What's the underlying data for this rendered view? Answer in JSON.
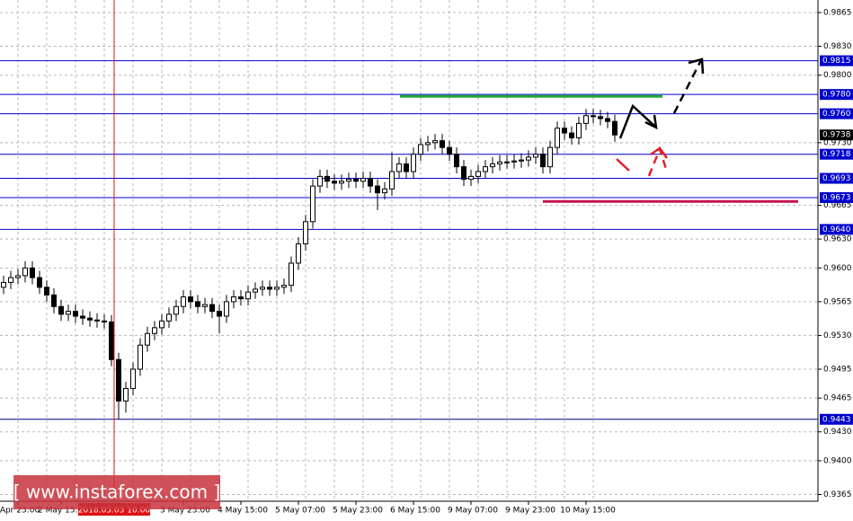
{
  "chart_data": {
    "type": "candlestick",
    "categories": [
      null,
      null,
      "Apr 23:00",
      null,
      null,
      null,
      null,
      null,
      "2 May 15:00",
      null,
      null,
      null,
      null,
      null,
      null,
      null,
      null,
      null,
      null,
      null,
      null,
      null,
      null,
      null,
      null,
      "3 May 23:00",
      null,
      null,
      null,
      null,
      null,
      null,
      null,
      "4 May 15:00",
      null,
      null,
      null,
      null,
      null,
      null,
      null,
      "5 May 07:00",
      null,
      null,
      null,
      null,
      null,
      null,
      null,
      "5 May 23:00",
      null,
      null,
      null,
      null,
      null,
      null,
      null,
      "6 May 15:00",
      null,
      null,
      null,
      null,
      null,
      null,
      null,
      "9 May 07:00",
      null,
      null,
      null,
      null,
      null,
      null,
      null,
      "9 May 23:00",
      null,
      null,
      null,
      null,
      null,
      null,
      null,
      "10 May 15:00",
      null,
      null,
      null,
      null
    ],
    "open": [
      0.958,
      0.9585,
      0.959,
      0.9592,
      0.96,
      0.959,
      0.958,
      0.9572,
      0.956,
      0.9552,
      0.9555,
      0.955,
      0.9548,
      0.9546,
      0.9545,
      0.9544,
      0.9505,
      0.9462,
      0.9475,
      0.9495,
      0.952,
      0.9532,
      0.9538,
      0.9545,
      0.9552,
      0.956,
      0.957,
      0.9565,
      0.956,
      0.9562,
      0.9555,
      0.955,
      0.9565,
      0.957,
      0.9568,
      0.9575,
      0.9578,
      0.958,
      0.9578,
      0.958,
      0.9582,
      0.9605,
      0.9625,
      0.9648,
      0.9685,
      0.9695,
      0.969,
      0.9688,
      0.969,
      0.9692,
      0.969,
      0.9693,
      0.9685,
      0.9678,
      0.9682,
      0.97,
      0.9708,
      0.97,
      0.9718,
      0.9728,
      0.973,
      0.9732,
      0.9725,
      0.9718,
      0.9705,
      0.9692,
      0.9695,
      0.97,
      0.9705,
      0.9708,
      0.971,
      0.971,
      0.9711,
      0.9712,
      0.9715,
      0.9718,
      0.9705,
      0.9725,
      0.9745,
      0.974,
      0.9735,
      0.975,
      0.9758,
      0.9757,
      0.9755,
      0.9752
    ],
    "high": [
      0.9592,
      0.9597,
      0.9599,
      0.9607,
      0.9607,
      0.9597,
      0.9587,
      0.9579,
      0.9567,
      0.9562,
      0.9562,
      0.9557,
      0.9555,
      0.9553,
      0.9552,
      0.9551,
      0.9512,
      0.9482,
      0.9502,
      0.9527,
      0.9539,
      0.9545,
      0.9552,
      0.9559,
      0.9567,
      0.9577,
      0.9577,
      0.9572,
      0.9569,
      0.9569,
      0.9562,
      0.9572,
      0.9577,
      0.9577,
      0.9582,
      0.9585,
      0.9587,
      0.9587,
      0.9587,
      0.9589,
      0.9612,
      0.9632,
      0.9655,
      0.9692,
      0.9702,
      0.9702,
      0.9697,
      0.9697,
      0.9699,
      0.9699,
      0.97,
      0.97,
      0.9692,
      0.9689,
      0.972,
      0.9715,
      0.9715,
      0.9725,
      0.9735,
      0.9737,
      0.9739,
      0.9739,
      0.9732,
      0.9725,
      0.9712,
      0.9702,
      0.9707,
      0.9712,
      0.9715,
      0.9717,
      0.9717,
      0.9718,
      0.9719,
      0.9722,
      0.9725,
      0.9725,
      0.9732,
      0.9752,
      0.9752,
      0.9747,
      0.9757,
      0.9765,
      0.9765,
      0.9764,
      0.9762,
      0.9759
    ],
    "low": [
      0.9573,
      0.9578,
      0.9583,
      0.9585,
      0.9583,
      0.9573,
      0.9565,
      0.9553,
      0.9545,
      0.9545,
      0.9543,
      0.9541,
      0.9539,
      0.9538,
      0.9537,
      0.9498,
      0.9443,
      0.945,
      0.9468,
      0.9488,
      0.9513,
      0.9525,
      0.9531,
      0.9538,
      0.9545,
      0.9553,
      0.9558,
      0.9553,
      0.9553,
      0.9548,
      0.9532,
      0.9543,
      0.9558,
      0.9561,
      0.9561,
      0.9568,
      0.9571,
      0.9571,
      0.9571,
      0.9573,
      0.9575,
      0.9598,
      0.9618,
      0.9641,
      0.9678,
      0.9683,
      0.9681,
      0.9681,
      0.9683,
      0.9683,
      0.9683,
      0.9678,
      0.966,
      0.9671,
      0.9675,
      0.9693,
      0.9693,
      0.9693,
      0.9711,
      0.9721,
      0.9723,
      0.9718,
      0.9711,
      0.9698,
      0.9685,
      0.9685,
      0.9688,
      0.9693,
      0.9698,
      0.9701,
      0.9703,
      0.9703,
      0.9704,
      0.9705,
      0.9708,
      0.9698,
      0.9698,
      0.9718,
      0.9733,
      0.9728,
      0.9728,
      0.9743,
      0.975,
      0.9748,
      0.9745,
      0.9731
    ],
    "close": [
      0.9585,
      0.959,
      0.9592,
      0.96,
      0.959,
      0.958,
      0.9572,
      0.956,
      0.9552,
      0.9555,
      0.955,
      0.9548,
      0.9546,
      0.9545,
      0.9544,
      0.9505,
      0.9462,
      0.9475,
      0.9495,
      0.952,
      0.9532,
      0.9538,
      0.9545,
      0.9552,
      0.956,
      0.957,
      0.9565,
      0.956,
      0.9562,
      0.9555,
      0.955,
      0.9565,
      0.957,
      0.9568,
      0.9575,
      0.9578,
      0.958,
      0.9578,
      0.958,
      0.9582,
      0.9605,
      0.9625,
      0.9648,
      0.9685,
      0.9695,
      0.969,
      0.9688,
      0.969,
      0.9692,
      0.969,
      0.9693,
      0.9685,
      0.9678,
      0.9682,
      0.97,
      0.9708,
      0.97,
      0.9718,
      0.9728,
      0.973,
      0.9732,
      0.9725,
      0.9718,
      0.9705,
      0.9692,
      0.9695,
      0.97,
      0.9705,
      0.9708,
      0.971,
      0.971,
      0.9711,
      0.9712,
      0.9715,
      0.9718,
      0.9705,
      0.9725,
      0.9745,
      0.974,
      0.9735,
      0.975,
      0.9758,
      0.9757,
      0.9755,
      0.9752,
      0.9738
    ],
    "ylim": [
      0.9358,
      0.9878
    ],
    "yticks": [
      0.9865,
      {
        "value": 0.983,
        "label": "0.9830"
      },
      {
        "value": 0.98,
        "label": "0.9800"
      },
      {
        "value": 0.973,
        "label": "0.9730"
      },
      0.9665,
      {
        "value": 0.963,
        "label": "0.9630"
      },
      {
        "value": 0.96,
        "label": "0.9600"
      },
      0.9565,
      {
        "value": 0.953,
        "label": "0.9530"
      },
      0.9495,
      0.9465,
      {
        "value": 0.943,
        "label": "0.9430"
      },
      {
        "value": 0.94,
        "label": "0.9400"
      },
      0.9365
    ],
    "grid": true,
    "levels": [
      0.9815,
      {
        "value": 0.978,
        "label": "0.9780"
      },
      {
        "value": 0.976,
        "label": "0.9760"
      },
      0.9718,
      0.9693,
      0.9673,
      {
        "value": 0.964,
        "label": "0.9640"
      },
      0.9443
    ],
    "level_color": "#0000cd",
    "current_price": 0.9738,
    "resistance_line": 0.9778,
    "support_line": 0.9669,
    "crosshair_label": "2018.05.03 10:00",
    "watermark": "[ www.instaforex.com ]"
  }
}
